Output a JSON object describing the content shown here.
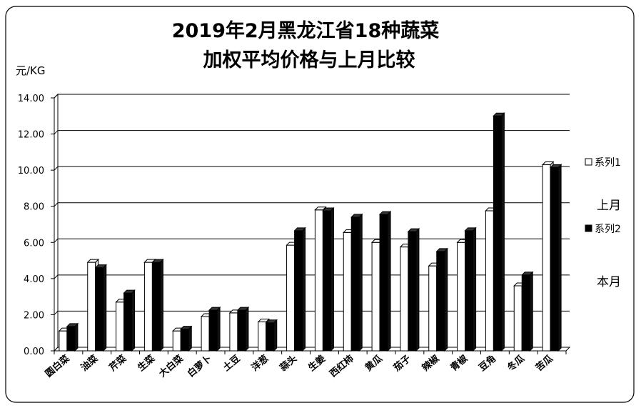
{
  "chart_data": {
    "type": "bar",
    "title_lines": [
      "2019年2月黑龙江省18种蔬菜",
      "加权平均价格与上月比较"
    ],
    "ylabel": "元/KG",
    "xlabel": "",
    "ylim": [
      0,
      14
    ],
    "ytick_step": 2,
    "ytick_labels": [
      "0.00",
      "2.00",
      "4.00",
      "6.00",
      "8.00",
      "10.00",
      "12.00",
      "14.00"
    ],
    "grid": true,
    "legend_position": "right",
    "categories": [
      "圆白菜",
      "油菜",
      "芹菜",
      "生菜",
      "大白菜",
      "白萝卜",
      "土豆",
      "洋葱",
      "蒜头",
      "生姜",
      "西红柿",
      "黄瓜",
      "茄子",
      "辣椒",
      "青椒",
      "豆角",
      "冬瓜",
      "苦瓜"
    ],
    "series": [
      {
        "name": "系列1",
        "annotation": "上月",
        "color": "#ffffff",
        "values": [
          1.1,
          4.9,
          2.7,
          4.9,
          1.1,
          1.9,
          2.1,
          1.6,
          5.85,
          7.8,
          6.55,
          6.0,
          5.75,
          4.7,
          6.0,
          7.75,
          3.6,
          10.3
        ]
      },
      {
        "name": "系列2",
        "annotation": "本月",
        "color": "#000000",
        "values": [
          1.35,
          4.6,
          3.2,
          4.9,
          1.2,
          2.25,
          2.25,
          1.55,
          6.65,
          7.75,
          7.4,
          7.55,
          6.6,
          5.5,
          6.65,
          13.0,
          4.2,
          10.15
        ]
      }
    ]
  }
}
